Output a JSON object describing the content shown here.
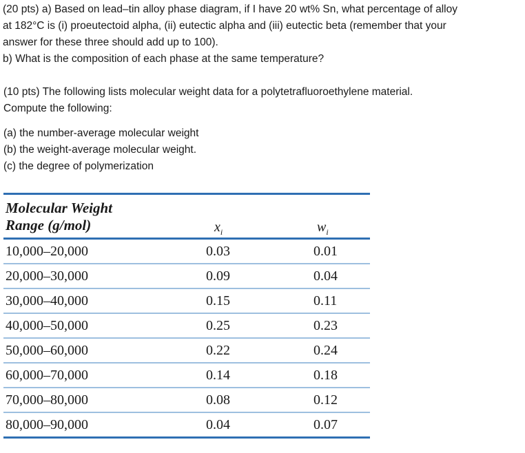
{
  "question1": {
    "lines": [
      "(20 pts) a) Based on lead–tin alloy phase diagram, if I have 20 wt% Sn, what percentage of alloy",
      "at 182°C is (i) proeutectoid alpha, (ii) eutectic alpha and (iii) eutectic beta (remember that your",
      "answer for these three should add up to 100).",
      "b)   What is the composition of each phase at the same temperature?"
    ]
  },
  "question2": {
    "intro": [
      "(10 pts) The following lists molecular weight data for a polytetrafluoroethylene material.",
      "Compute the following:"
    ],
    "items": [
      "(a) the number-average molecular weight",
      "(b) the weight-average molecular weight.",
      "(c) the degree of polymerization"
    ]
  },
  "table": {
    "header_line1": "Molecular Weight",
    "header_line2": "Range (g/mol)",
    "col_x": "x",
    "col_x_sub": "i",
    "col_w": "w",
    "col_w_sub": "i",
    "rows": [
      {
        "range": "10,000–20,000",
        "x": "0.03",
        "w": "0.01"
      },
      {
        "range": "20,000–30,000",
        "x": "0.09",
        "w": "0.04"
      },
      {
        "range": "30,000–40,000",
        "x": "0.15",
        "w": "0.11"
      },
      {
        "range": "40,000–50,000",
        "x": "0.25",
        "w": "0.23"
      },
      {
        "range": "50,000–60,000",
        "x": "0.22",
        "w": "0.24"
      },
      {
        "range": "60,000–70,000",
        "x": "0.14",
        "w": "0.18"
      },
      {
        "range": "70,000–80,000",
        "x": "0.08",
        "w": "0.12"
      },
      {
        "range": "80,000–90,000",
        "x": "0.04",
        "w": "0.07"
      }
    ]
  },
  "colors": {
    "table_rule": "#2f6fb3",
    "row_rule": "#9dbfdf"
  }
}
